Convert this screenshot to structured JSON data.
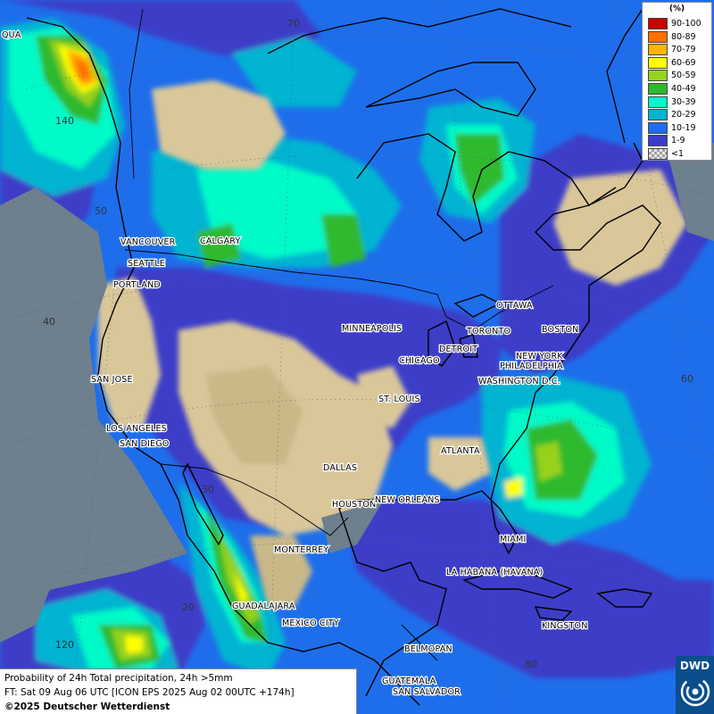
{
  "legend": {
    "unit": "(%)",
    "classes": [
      {
        "label": "90-100",
        "color": "#c80000"
      },
      {
        "label": "80-89",
        "color": "#ff6f00"
      },
      {
        "label": "70-79",
        "color": "#ffb400"
      },
      {
        "label": "60-69",
        "color": "#ffff00"
      },
      {
        "label": "50-59",
        "color": "#96d21e"
      },
      {
        "label": "40-49",
        "color": "#2db92d"
      },
      {
        "label": "30-39",
        "color": "#00fac8"
      },
      {
        "label": "20-29",
        "color": "#00b4d2"
      },
      {
        "label": "10-19",
        "color": "#1e6eeb"
      },
      {
        "label": "1-9",
        "color": "#3c3cc8"
      },
      {
        "label": "<1",
        "color": "checker"
      }
    ]
  },
  "grid_labels": {
    "lat70": "70",
    "lat50": "50",
    "lat40": "40",
    "lat30": "30",
    "lat20": "20",
    "lon140": "140",
    "lon120": "120",
    "lon60": "60",
    "lon80": "80"
  },
  "cities": {
    "vancouver": "VANCOUVER",
    "calgary": "CALGARY",
    "seattle": "SEATTLE",
    "portland": "PORTLAND",
    "san_jose": "SAN JOSE",
    "los_angeles": "LOS ANGELES",
    "san_diego": "SAN DIEGO",
    "minneapolis": "MINNEAPOLIS",
    "detroit": "DETROIT",
    "toronto": "TORONTO",
    "ottawa": "OTTAWA",
    "boston": "BOSTON",
    "new_york": "NEW YORK",
    "philadelphia": "PHILADELPHIA",
    "washington": "WASHINGTON D.C.",
    "chicago": "CHICAGO",
    "st_louis": "ST. LOUIS",
    "atlanta": "ATLANTA",
    "dallas": "DALLAS",
    "houston": "HOUSTON",
    "new_orleans": "NEW ORLEANS",
    "miami": "MIAMI",
    "monterrey": "MONTERREY",
    "la_habana": "LA HABANA (HAVANA)",
    "guadalajara": "GUADALAJARA",
    "mexico_city": "MEXICO CITY",
    "kingston": "KINGSTON",
    "belmopan": "BELMOPAN",
    "guatemala": "GUATEMALA",
    "san_salvador": "SAN SALVADOR",
    "qua": "QUA"
  },
  "info": {
    "line1": "Probability of 24h Total precipitation, 24h >5mm",
    "line2": "FT: Sat 09 Aug 06 UTC [ICON EPS 2025 Aug 02 00UTC +174h]",
    "line3": "©2025 Deutscher Wetterdienst"
  },
  "logo": {
    "text": "DWD"
  }
}
